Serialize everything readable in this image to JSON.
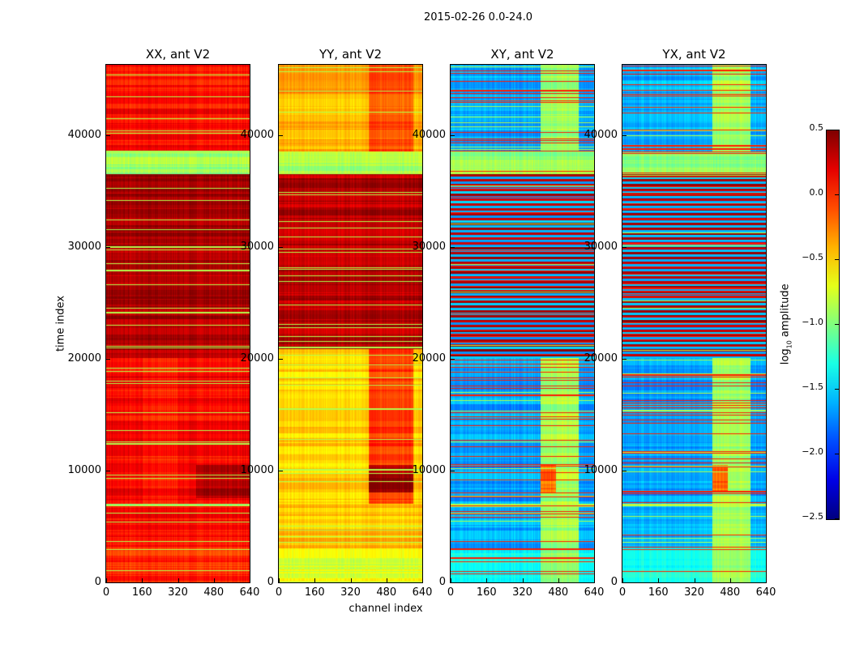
{
  "suptitle": "2015-02-26 0.0-24.0",
  "chart_data": {
    "type": "heatmap",
    "title": "2015-02-26 0.0-24.0",
    "xlabel": "channel index",
    "ylabel": "time index",
    "xlim": [
      0,
      640
    ],
    "ylim": [
      0,
      46300
    ],
    "xticks": [
      "0",
      "160",
      "320",
      "480",
      "640"
    ],
    "xtick_values": [
      0,
      160,
      320,
      480,
      640
    ],
    "yticks": [
      "0",
      "10000",
      "20000",
      "30000",
      "40000"
    ],
    "ytick_values": [
      0,
      10000,
      20000,
      30000,
      40000
    ],
    "colormap": "jet",
    "colorbar": {
      "label": "log10 amplitude",
      "label_main": "log",
      "label_sub": "10",
      "label_rest": " amplitude",
      "range": [
        -2.5,
        0.5
      ],
      "ticks": [
        "0.5",
        "0.0",
        "−0.5",
        "−1.0",
        "−1.5",
        "−2.0",
        "−2.5"
      ],
      "tick_values": [
        0.5,
        0.0,
        -0.5,
        -1.0,
        -1.5,
        -2.0,
        -2.5
      ]
    },
    "panels": [
      {
        "title": "XX, ant V2",
        "base": [
          [
            0,
            3000,
            0.0
          ],
          [
            3000,
            6800,
            0.1
          ],
          [
            6800,
            7000,
            -0.9
          ],
          [
            7000,
            20000,
            0.12
          ],
          [
            20000,
            36500,
            0.38
          ],
          [
            36500,
            38500,
            -0.9
          ],
          [
            38500,
            46300,
            0.1
          ]
        ],
        "features": [
          {
            "channels": [
              400,
              640
            ],
            "time": [
              7500,
              10500
            ],
            "value": 0.35
          },
          {
            "channels": [
              160,
              320
            ],
            "time": [
              7000,
              20000
            ],
            "delta": -0.08
          }
        ],
        "green_lines": 0.06
      },
      {
        "title": "YY, ant V2",
        "base": [
          [
            0,
            3000,
            -0.7
          ],
          [
            3000,
            7000,
            -0.45
          ],
          [
            7000,
            20800,
            -0.5
          ],
          [
            20800,
            36500,
            0.33
          ],
          [
            36500,
            38500,
            -0.9
          ],
          [
            38500,
            43200,
            -0.4
          ],
          [
            43200,
            46300,
            -0.35
          ]
        ],
        "features": [
          {
            "channels": [
              400,
              600
            ],
            "time": [
              7000,
              20800
            ],
            "value": -0.05
          },
          {
            "channels": [
              400,
              600
            ],
            "time": [
              8000,
              10500
            ],
            "value": 0.38
          },
          {
            "channels": [
              400,
              600
            ],
            "time": [
              38500,
              46300
            ],
            "value": -0.1
          }
        ],
        "green_lines": 0.06
      },
      {
        "title": "XY, ant V2",
        "base": [
          [
            0,
            3000,
            -1.3
          ],
          [
            3000,
            6800,
            -1.6
          ],
          [
            6800,
            7000,
            -0.9
          ],
          [
            7000,
            20000,
            -1.65
          ],
          [
            20000,
            36500,
            -1.7
          ],
          [
            36500,
            38500,
            -0.95
          ],
          [
            38500,
            46300,
            -1.6
          ]
        ],
        "features": [
          {
            "channels": [
              400,
              570
            ],
            "time": [
              0,
              46300
            ],
            "value": -0.9
          },
          {
            "channels": [
              400,
              470
            ],
            "time": [
              8000,
              10500
            ],
            "value": -0.2
          }
        ],
        "hot_rows": 0.35,
        "green_lines": 0.04
      },
      {
        "title": "YX, ant V2",
        "base": [
          [
            0,
            3000,
            -1.3
          ],
          [
            3000,
            6800,
            -1.6
          ],
          [
            6800,
            7000,
            -0.9
          ],
          [
            7000,
            20000,
            -1.65
          ],
          [
            20000,
            36500,
            -1.7
          ],
          [
            36500,
            38500,
            -0.95
          ],
          [
            38500,
            46300,
            -1.6
          ]
        ],
        "features": [
          {
            "channels": [
              400,
              570
            ],
            "time": [
              0,
              46300
            ],
            "value": -0.9
          },
          {
            "channels": [
              400,
              470
            ],
            "time": [
              8000,
              10500
            ],
            "value": -0.2
          }
        ],
        "hot_rows": 0.35,
        "green_lines": 0.04
      }
    ]
  }
}
